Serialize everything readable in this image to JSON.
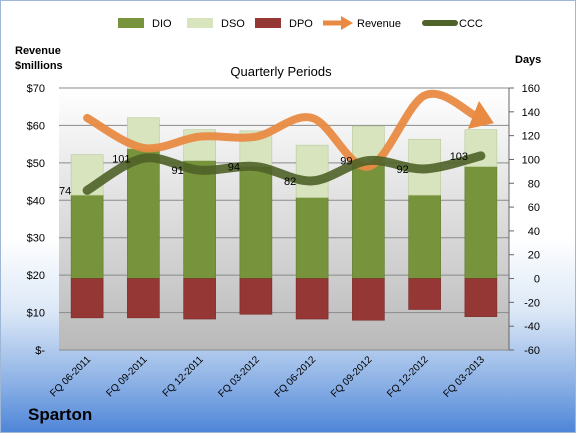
{
  "company": "Sparton",
  "chart_data": {
    "type": "bar",
    "title": "Quarterly Periods",
    "y_left_label": [
      "Revenue",
      "$millions"
    ],
    "y_right_label": "Days",
    "categories": [
      "FQ 06-2011",
      "FQ 09-2011",
      "FQ 12-2011",
      "FQ 03-2012",
      "FQ 06-2012",
      "FQ 09-2012",
      "FQ 12-2012",
      "FQ 03-2013"
    ],
    "left_axis": {
      "ticks": [
        "$-",
        "$10",
        "$20",
        "$30",
        "$40",
        "$50",
        "$60",
        "$70"
      ],
      "min": 0,
      "max": 70
    },
    "right_axis": {
      "ticks": [
        "-60",
        "-40",
        "-20",
        "0",
        "20",
        "40",
        "60",
        "80",
        "100",
        "120",
        "140",
        "160"
      ],
      "min": -60,
      "max": 160
    },
    "series": [
      {
        "name": "DIO",
        "color": "#77933c",
        "axis": "days",
        "values": [
          70,
          109,
          99,
          94,
          68,
          97,
          70,
          94
        ]
      },
      {
        "name": "DSO",
        "color": "#d7e4bd",
        "axis": "days",
        "values": [
          34,
          26,
          26,
          30,
          44,
          31,
          47,
          31
        ]
      },
      {
        "name": "DPO",
        "color": "#953735",
        "axis": "days",
        "values": [
          -33,
          -33,
          -34,
          -30,
          -34,
          -35,
          -26,
          -32
        ]
      },
      {
        "name": "Revenue",
        "color": "#e98a43",
        "axis": "revenue",
        "values": [
          62,
          54,
          57,
          57,
          62,
          49,
          68,
          62
        ]
      },
      {
        "name": "CCC",
        "color": "#4f6228",
        "axis": "days",
        "values": [
          74,
          101,
          91,
          94,
          82,
          99,
          92,
          103
        ]
      }
    ],
    "ccc_labels": [
      "74",
      "101",
      "91",
      "94",
      "82",
      "99",
      "92",
      "103"
    ]
  }
}
